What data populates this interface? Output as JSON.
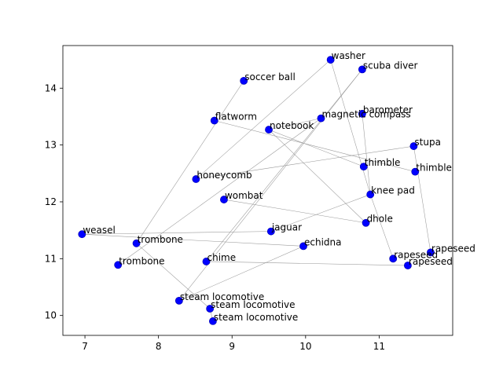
{
  "chart_data": {
    "type": "scatter",
    "title": "",
    "xlabel": "",
    "ylabel": "",
    "xlim": [
      6.7,
      12.0
    ],
    "ylim": [
      9.65,
      14.75
    ],
    "x_ticks": [
      7,
      8,
      9,
      10,
      11
    ],
    "y_ticks": [
      10,
      11,
      12,
      13,
      14
    ],
    "x_tick_labels": [
      "7",
      "8",
      "9",
      "10",
      "11"
    ],
    "y_tick_labels": [
      "10",
      "11",
      "12",
      "13",
      "14"
    ],
    "grid": false,
    "marker_color": "#0000ff",
    "edge_color": "#999999",
    "points": [
      {
        "label": "washer",
        "x": 10.34,
        "y": 14.5
      },
      {
        "label": "scuba diver",
        "x": 10.77,
        "y": 14.33
      },
      {
        "label": "soccer ball",
        "x": 9.16,
        "y": 14.13
      },
      {
        "label": "barometer",
        "x": 10.77,
        "y": 13.55
      },
      {
        "label": "magnetic compass",
        "x": 10.21,
        "y": 13.47
      },
      {
        "label": "flatworm",
        "x": 8.76,
        "y": 13.43
      },
      {
        "label": "notebook",
        "x": 9.5,
        "y": 13.27
      },
      {
        "label": "stupa",
        "x": 11.47,
        "y": 12.98
      },
      {
        "label": "thimble",
        "x": 10.79,
        "y": 12.62
      },
      {
        "label": "thimble",
        "x": 11.49,
        "y": 12.53
      },
      {
        "label": "honeycomb",
        "x": 8.51,
        "y": 12.4
      },
      {
        "label": "knee pad",
        "x": 10.88,
        "y": 12.13
      },
      {
        "label": "wombat",
        "x": 8.89,
        "y": 12.04
      },
      {
        "label": "dhole",
        "x": 10.82,
        "y": 11.63
      },
      {
        "label": "jaguar",
        "x": 9.53,
        "y": 11.48
      },
      {
        "label": "weasel",
        "x": 6.96,
        "y": 11.43
      },
      {
        "label": "trombone",
        "x": 7.7,
        "y": 11.27
      },
      {
        "label": "echidna",
        "x": 9.97,
        "y": 11.22
      },
      {
        "label": "rapeseed",
        "x": 11.7,
        "y": 11.11
      },
      {
        "label": "rapeseed",
        "x": 11.19,
        "y": 11.0
      },
      {
        "label": "chime",
        "x": 8.65,
        "y": 10.95
      },
      {
        "label": "trombone",
        "x": 7.45,
        "y": 10.89
      },
      {
        "label": "rapeseed",
        "x": 11.39,
        "y": 10.88
      },
      {
        "label": "steam locomotive",
        "x": 8.28,
        "y": 10.26
      },
      {
        "label": "steam locomotive",
        "x": 8.7,
        "y": 10.12
      },
      {
        "label": "steam locomotive",
        "x": 8.74,
        "y": 9.9
      }
    ],
    "edges": [
      [
        0,
        11
      ],
      [
        0,
        10
      ],
      [
        1,
        20
      ],
      [
        1,
        23
      ],
      [
        2,
        16
      ],
      [
        3,
        11
      ],
      [
        4,
        6
      ],
      [
        4,
        21
      ],
      [
        5,
        9
      ],
      [
        6,
        8
      ],
      [
        6,
        13
      ],
      [
        7,
        10
      ],
      [
        7,
        18
      ],
      [
        12,
        13
      ],
      [
        14,
        15
      ],
      [
        15,
        17
      ],
      [
        16,
        24
      ],
      [
        17,
        23
      ],
      [
        19,
        11
      ],
      [
        20,
        22
      ],
      [
        24,
        25
      ],
      [
        14,
        11
      ]
    ]
  }
}
